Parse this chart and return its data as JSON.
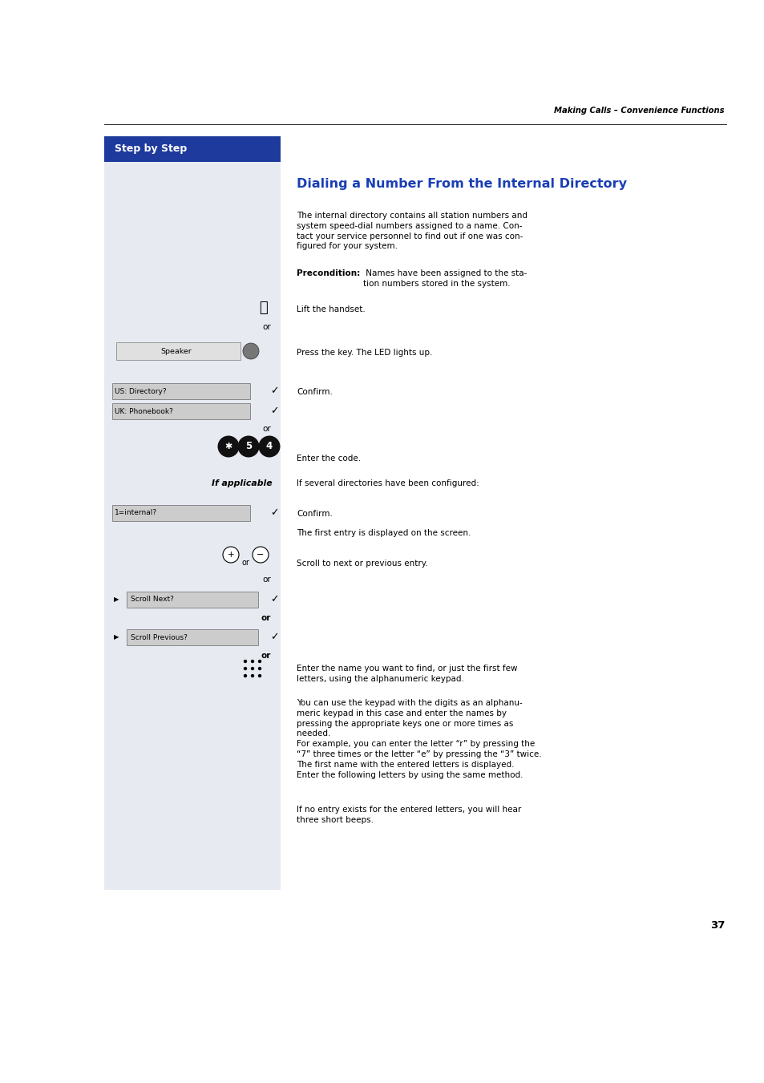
{
  "page_width": 9.54,
  "page_height": 13.51,
  "bg_color": "#ffffff",
  "left_panel_bg": "#e8eaf2",
  "header_text": "Making Calls – Convenience Functions",
  "step_by_step_bg": "#1e3a9c",
  "step_by_step_text": "Step by Step",
  "title": "Dialing a Number From the Internal Directory",
  "title_color": "#1a3eb5",
  "body_text_1": "The internal directory contains all station numbers and\nsystem speed-dial numbers assigned to a name. Con-\ntact your service personnel to find out if one was con-\nfigured for your system.",
  "precondition_bold": "Precondition:",
  "precondition_rest": " Names have been assigned to the sta-\ntion numbers stored in the system.",
  "lift_handset": "Lift the handset.",
  "speaker_label": "Speaker",
  "speaker_text": "Press the key. The LED lights up.",
  "confirm_text": "Confirm.",
  "enter_code_text": "Enter the code.",
  "if_applicable": "If applicable",
  "if_applicable_text": "If several directories have been configured:",
  "internal_label": "1=internal?",
  "confirm2_text": "Confirm.",
  "first_entry_text": "The first entry is displayed on the screen.",
  "scroll_text": "Scroll to next or previous entry.",
  "scroll_next_label": "Scroll Next?",
  "scroll_prev_label": "Scroll Previous?",
  "enter_name_text": "Enter the name you want to find, or just the first few\nletters, using the alphanumeric keypad.",
  "body_text_2": "You can use the keypad with the digits as an alphanu-\nmeric keypad in this case and enter the names by\npressing the appropriate keys one or more times as\nneeded.\nFor example, you can enter the letter “r” by pressing the\n“7” three times or the letter “e” by pressing the “3” twice.\nThe first name with the entered letters is displayed.\nEnter the following letters by using the same method.",
  "body_text_3": "If no entry exists for the entered letters, you will hear\nthree short beeps.",
  "page_number": "37"
}
